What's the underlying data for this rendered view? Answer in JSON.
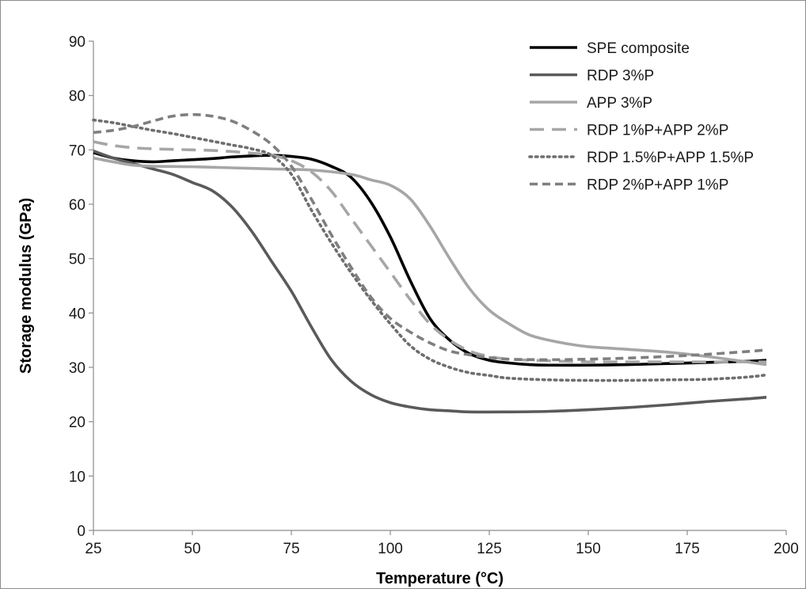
{
  "chart_data": {
    "type": "line",
    "title": "",
    "xlabel": "Temperature (°C)",
    "ylabel": "Storage modulus (GPa)",
    "xlim": [
      25,
      200
    ],
    "ylim": [
      0,
      90
    ],
    "xticks": [
      25,
      50,
      75,
      100,
      125,
      150,
      175,
      200
    ],
    "yticks": [
      0,
      10,
      20,
      30,
      40,
      50,
      60,
      70,
      80,
      90
    ],
    "grid": false,
    "legend_position": "top-right",
    "series": [
      {
        "name": "SPE composite",
        "color": "#000000",
        "dash": "solid",
        "points": [
          [
            25,
            69.5
          ],
          [
            30,
            68.5
          ],
          [
            35,
            68.0
          ],
          [
            40,
            67.8
          ],
          [
            45,
            68.0
          ],
          [
            50,
            68.2
          ],
          [
            55,
            68.4
          ],
          [
            60,
            68.7
          ],
          [
            65,
            68.9
          ],
          [
            70,
            69.0
          ],
          [
            75,
            68.8
          ],
          [
            80,
            68.3
          ],
          [
            85,
            67.0
          ],
          [
            90,
            65.0
          ],
          [
            95,
            60.5
          ],
          [
            100,
            54.0
          ],
          [
            105,
            46.0
          ],
          [
            110,
            39.0
          ],
          [
            115,
            35.0
          ],
          [
            120,
            32.5
          ],
          [
            125,
            31.3
          ],
          [
            130,
            30.8
          ],
          [
            135,
            30.5
          ],
          [
            140,
            30.4
          ],
          [
            150,
            30.4
          ],
          [
            160,
            30.5
          ],
          [
            170,
            30.7
          ],
          [
            180,
            30.9
          ],
          [
            190,
            31.1
          ],
          [
            195,
            31.3
          ]
        ]
      },
      {
        "name": "RDP 3%P",
        "color": "#5a5a5a",
        "dash": "solid",
        "points": [
          [
            25,
            69.8
          ],
          [
            30,
            68.5
          ],
          [
            35,
            67.5
          ],
          [
            40,
            66.5
          ],
          [
            45,
            65.5
          ],
          [
            50,
            64.0
          ],
          [
            55,
            62.5
          ],
          [
            60,
            59.5
          ],
          [
            65,
            55.0
          ],
          [
            70,
            49.5
          ],
          [
            75,
            44.0
          ],
          [
            80,
            37.5
          ],
          [
            85,
            31.5
          ],
          [
            90,
            27.5
          ],
          [
            95,
            25.0
          ],
          [
            100,
            23.5
          ],
          [
            105,
            22.7
          ],
          [
            110,
            22.2
          ],
          [
            115,
            22.0
          ],
          [
            120,
            21.8
          ],
          [
            130,
            21.8
          ],
          [
            140,
            21.9
          ],
          [
            150,
            22.2
          ],
          [
            160,
            22.6
          ],
          [
            170,
            23.1
          ],
          [
            180,
            23.7
          ],
          [
            190,
            24.2
          ],
          [
            195,
            24.5
          ]
        ]
      },
      {
        "name": "APP 3%P",
        "color": "#a6a6a6",
        "dash": "solid",
        "points": [
          [
            25,
            68.5
          ],
          [
            30,
            67.8
          ],
          [
            35,
            67.2
          ],
          [
            40,
            67.0
          ],
          [
            50,
            66.9
          ],
          [
            60,
            66.7
          ],
          [
            70,
            66.5
          ],
          [
            80,
            66.3
          ],
          [
            90,
            65.5
          ],
          [
            95,
            64.5
          ],
          [
            100,
            63.5
          ],
          [
            105,
            61.0
          ],
          [
            110,
            56.0
          ],
          [
            115,
            50.0
          ],
          [
            120,
            44.5
          ],
          [
            125,
            40.5
          ],
          [
            130,
            38.0
          ],
          [
            135,
            36.0
          ],
          [
            140,
            35.0
          ],
          [
            145,
            34.3
          ],
          [
            150,
            33.8
          ],
          [
            160,
            33.3
          ],
          [
            170,
            32.8
          ],
          [
            180,
            32.0
          ],
          [
            190,
            31.0
          ],
          [
            195,
            30.5
          ]
        ]
      },
      {
        "name": "RDP 1%P+APP 2%P",
        "color": "#a6a6a6",
        "dash": "long-dash",
        "points": [
          [
            25,
            71.5
          ],
          [
            30,
            70.8
          ],
          [
            35,
            70.4
          ],
          [
            40,
            70.2
          ],
          [
            45,
            70.1
          ],
          [
            50,
            70.0
          ],
          [
            55,
            69.9
          ],
          [
            60,
            69.7
          ],
          [
            65,
            69.4
          ],
          [
            70,
            69.0
          ],
          [
            75,
            68.0
          ],
          [
            80,
            66.0
          ],
          [
            85,
            62.5
          ],
          [
            90,
            57.5
          ],
          [
            95,
            52.5
          ],
          [
            100,
            47.5
          ],
          [
            105,
            42.5
          ],
          [
            110,
            38.0
          ],
          [
            115,
            35.0
          ],
          [
            120,
            33.0
          ],
          [
            125,
            32.0
          ],
          [
            130,
            31.5
          ],
          [
            140,
            31.2
          ],
          [
            150,
            31.0
          ],
          [
            160,
            31.0
          ],
          [
            170,
            31.0
          ],
          [
            180,
            31.0
          ],
          [
            190,
            31.0
          ],
          [
            195,
            31.0
          ]
        ]
      },
      {
        "name": "RDP 1.5%P+APP 1.5%P",
        "color": "#6e6e6e",
        "dash": "dotted",
        "points": [
          [
            25,
            75.5
          ],
          [
            30,
            75.0
          ],
          [
            35,
            74.3
          ],
          [
            40,
            73.6
          ],
          [
            45,
            73.0
          ],
          [
            50,
            72.3
          ],
          [
            55,
            71.6
          ],
          [
            60,
            70.9
          ],
          [
            65,
            70.2
          ],
          [
            70,
            69.0
          ],
          [
            75,
            65.5
          ],
          [
            80,
            59.0
          ],
          [
            85,
            53.0
          ],
          [
            90,
            47.5
          ],
          [
            95,
            42.5
          ],
          [
            100,
            38.0
          ],
          [
            105,
            34.0
          ],
          [
            110,
            31.5
          ],
          [
            115,
            30.0
          ],
          [
            120,
            29.0
          ],
          [
            125,
            28.5
          ],
          [
            130,
            28.0
          ],
          [
            140,
            27.7
          ],
          [
            150,
            27.6
          ],
          [
            160,
            27.6
          ],
          [
            170,
            27.7
          ],
          [
            180,
            27.8
          ],
          [
            190,
            28.2
          ],
          [
            195,
            28.6
          ]
        ]
      },
      {
        "name": "RDP 2%P+APP 1%P",
        "color": "#7f7f7f",
        "dash": "short-dash",
        "points": [
          [
            25,
            73.2
          ],
          [
            30,
            73.6
          ],
          [
            35,
            74.3
          ],
          [
            40,
            75.3
          ],
          [
            45,
            76.2
          ],
          [
            50,
            76.5
          ],
          [
            55,
            76.2
          ],
          [
            60,
            75.3
          ],
          [
            65,
            73.5
          ],
          [
            70,
            71.0
          ],
          [
            75,
            67.0
          ],
          [
            80,
            61.0
          ],
          [
            85,
            54.5
          ],
          [
            90,
            48.5
          ],
          [
            95,
            43.0
          ],
          [
            100,
            39.0
          ],
          [
            105,
            36.5
          ],
          [
            110,
            34.5
          ],
          [
            115,
            33.0
          ],
          [
            120,
            32.3
          ],
          [
            125,
            31.8
          ],
          [
            130,
            31.5
          ],
          [
            140,
            31.4
          ],
          [
            150,
            31.5
          ],
          [
            160,
            31.7
          ],
          [
            170,
            32.0
          ],
          [
            180,
            32.4
          ],
          [
            190,
            32.9
          ],
          [
            195,
            33.2
          ]
        ]
      }
    ]
  }
}
